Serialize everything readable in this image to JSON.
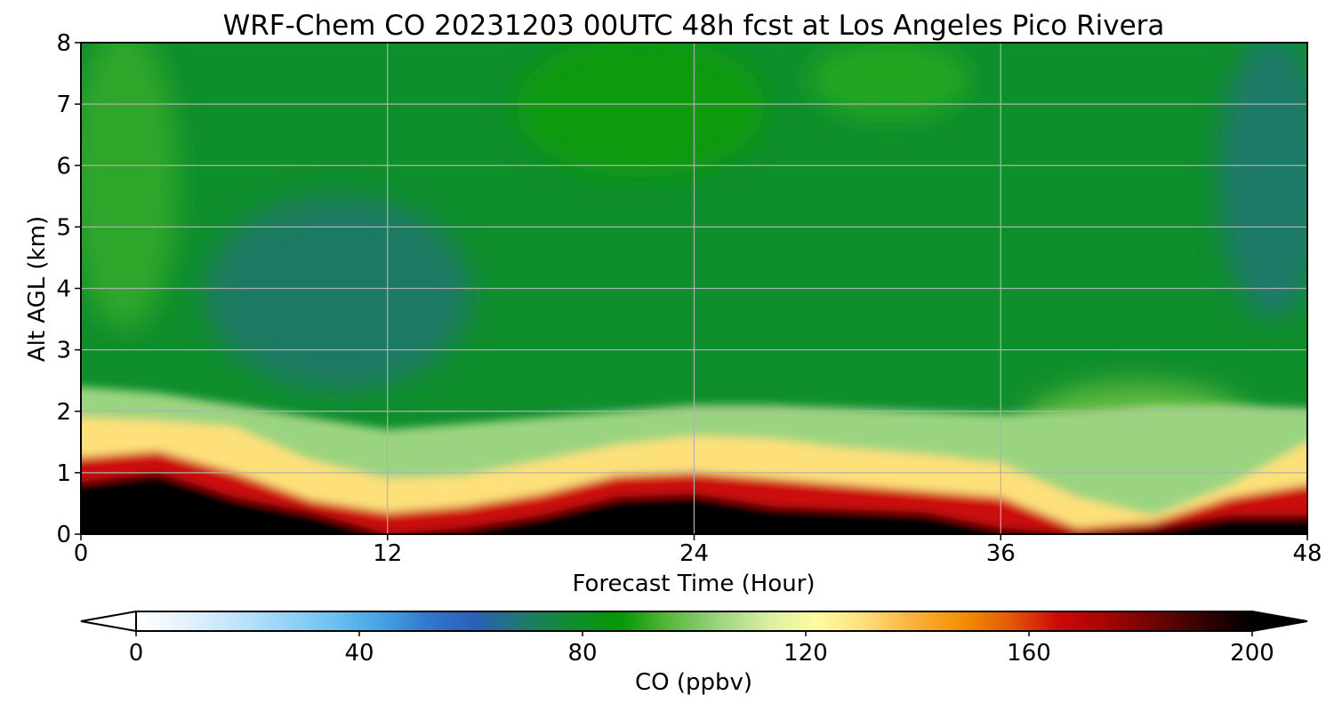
{
  "chart_data": {
    "type": "heatmap",
    "title": "WRF-Chem CO  20231203 00UTC 48h fcst at Los Angeles Pico Rivera",
    "xlabel": "Forecast Time (Hour)",
    "ylabel": "Alt AGL (km)",
    "xlim": [
      0,
      48
    ],
    "ylim": [
      0,
      8
    ],
    "x_ticks": [
      "0",
      "12",
      "24",
      "36",
      "48"
    ],
    "y_ticks": [
      "0",
      "1",
      "2",
      "3",
      "4",
      "5",
      "6",
      "7",
      "8"
    ],
    "grid": true,
    "colorbar": {
      "label": "CO  (ppbv)",
      "range": [
        0,
        200
      ],
      "ticks": [
        "0",
        "40",
        "80",
        "120",
        "160",
        "200"
      ],
      "extend": "both",
      "colors": [
        "#ffffff",
        "#e4f3fd",
        "#c2e5fb",
        "#9ad5f8",
        "#6ec3f3",
        "#46a6e6",
        "#3278cf",
        "#2b5fb8",
        "#1e7a6a",
        "#0f8e2c",
        "#049804",
        "#5bb83e",
        "#9bd480",
        "#d8eea0",
        "#fffc9f",
        "#fde07a",
        "#fbb13a",
        "#f58f05",
        "#e55a06",
        "#cc0909",
        "#a50505",
        "#6f0404",
        "#330101",
        "#000000"
      ]
    },
    "times": [
      0,
      3,
      6,
      9,
      12,
      15,
      18,
      21,
      24,
      27,
      30,
      33,
      36,
      39,
      42,
      45,
      48
    ],
    "layers": [
      {
        "name": "co_200_height_km",
        "values": [
          0.85,
          1.0,
          0.6,
          0.35,
          0.0,
          0.1,
          0.3,
          0.6,
          0.65,
          0.45,
          0.4,
          0.35,
          0.1,
          0.0,
          0.1,
          0.3,
          0.3
        ]
      },
      {
        "name": "co_150_height_km",
        "values": [
          1.25,
          1.35,
          1.0,
          0.55,
          0.35,
          0.45,
          0.65,
          0.95,
          1.0,
          0.9,
          0.8,
          0.7,
          0.6,
          0.1,
          0.2,
          0.6,
          0.8
        ]
      },
      {
        "name": "co_100_height_km",
        "values": [
          1.9,
          1.85,
          1.75,
          1.2,
          0.9,
          0.95,
          1.2,
          1.45,
          1.6,
          1.55,
          1.4,
          1.3,
          1.15,
          0.6,
          0.3,
          0.8,
          1.5
        ]
      },
      {
        "name": "co_80_height_km",
        "values": [
          2.4,
          2.3,
          2.1,
          1.9,
          1.7,
          1.8,
          1.9,
          2.0,
          2.1,
          2.1,
          2.05,
          2.0,
          1.95,
          2.0,
          2.1,
          2.1,
          2.05
        ]
      }
    ]
  }
}
